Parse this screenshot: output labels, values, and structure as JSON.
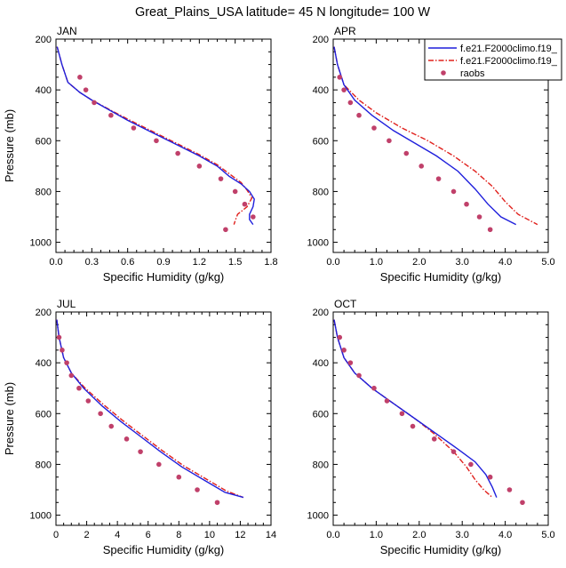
{
  "title": "Great_Plains_USA  latitude= 45 N longitude= 100 W",
  "colors": {
    "model1": "#1f1fdc",
    "model2": "#e0201c",
    "raobs": "#c0406a"
  },
  "legend": {
    "entries": [
      {
        "label": "f.e21.F2000climo.f19_",
        "style": "solid",
        "color": "#1f1fdc"
      },
      {
        "label": "f.e21.F2000climo.f19_",
        "style": "dashed",
        "color": "#e0201c"
      },
      {
        "label": "raobs",
        "style": "marker",
        "color": "#c0406a"
      }
    ]
  },
  "chart_data": [
    {
      "type": "line",
      "panel_label": "JAN",
      "xlabel": "Specific Humidity (g/kg)",
      "ylabel": "Pressure (mb)",
      "xlim": [
        0,
        1.8
      ],
      "ylim": [
        200,
        1040
      ],
      "y_reversed": true,
      "xticks": [
        "0.0",
        "0.3",
        "0.6",
        "0.9",
        "1.2",
        "1.5",
        "1.8"
      ],
      "yticks": [
        "200",
        "400",
        "600",
        "800",
        "1000"
      ],
      "series": [
        {
          "kind": "solid",
          "points": [
            [
              0.01,
              230
            ],
            [
              0.05,
              300
            ],
            [
              0.1,
              370
            ],
            [
              0.2,
              410
            ],
            [
              0.3,
              440
            ],
            [
              0.45,
              480
            ],
            [
              0.6,
              520
            ],
            [
              0.75,
              555
            ],
            [
              0.9,
              590
            ],
            [
              1.05,
              625
            ],
            [
              1.2,
              660
            ],
            [
              1.35,
              700
            ],
            [
              1.45,
              740
            ],
            [
              1.55,
              770
            ],
            [
              1.62,
              800
            ],
            [
              1.66,
              830
            ],
            [
              1.65,
              860
            ],
            [
              1.62,
              890
            ],
            [
              1.62,
              910
            ],
            [
              1.65,
              930
            ]
          ]
        },
        {
          "kind": "dashed",
          "points": [
            [
              0.01,
              230
            ],
            [
              0.05,
              300
            ],
            [
              0.1,
              370
            ],
            [
              0.2,
              410
            ],
            [
              0.3,
              440
            ],
            [
              0.45,
              478
            ],
            [
              0.6,
              515
            ],
            [
              0.75,
              550
            ],
            [
              0.9,
              585
            ],
            [
              1.05,
              620
            ],
            [
              1.2,
              655
            ],
            [
              1.35,
              695
            ],
            [
              1.45,
              730
            ],
            [
              1.55,
              765
            ],
            [
              1.6,
              795
            ],
            [
              1.64,
              825
            ],
            [
              1.6,
              860
            ],
            [
              1.52,
              890
            ],
            [
              1.5,
              915
            ],
            [
              1.49,
              930
            ]
          ]
        },
        {
          "kind": "marker",
          "points": [
            [
              0.2,
              350
            ],
            [
              0.25,
              400
            ],
            [
              0.32,
              450
            ],
            [
              0.46,
              500
            ],
            [
              0.65,
              550
            ],
            [
              0.84,
              600
            ],
            [
              1.02,
              650
            ],
            [
              1.2,
              700
            ],
            [
              1.38,
              750
            ],
            [
              1.5,
              800
            ],
            [
              1.58,
              850
            ],
            [
              1.65,
              900
            ],
            [
              1.42,
              950
            ]
          ]
        }
      ]
    },
    {
      "type": "line",
      "panel_label": "APR",
      "xlabel": "Specific Humidity (g/kg)",
      "ylabel": "",
      "xlim": [
        0,
        5.0
      ],
      "ylim": [
        200,
        1040
      ],
      "y_reversed": true,
      "xticks": [
        "0.0",
        "1.0",
        "2.0",
        "3.0",
        "4.0",
        "5.0"
      ],
      "yticks": [
        "200",
        "400",
        "600",
        "800",
        "1000"
      ],
      "series": [
        {
          "kind": "solid",
          "points": [
            [
              0.02,
              230
            ],
            [
              0.1,
              300
            ],
            [
              0.25,
              380
            ],
            [
              0.5,
              440
            ],
            [
              0.9,
              500
            ],
            [
              1.4,
              560
            ],
            [
              1.9,
              610
            ],
            [
              2.4,
              660
            ],
            [
              2.9,
              720
            ],
            [
              3.3,
              790
            ],
            [
              3.6,
              850
            ],
            [
              3.9,
              900
            ],
            [
              4.25,
              930
            ]
          ]
        },
        {
          "kind": "dashed",
          "points": [
            [
              0.02,
              230
            ],
            [
              0.1,
              300
            ],
            [
              0.25,
              380
            ],
            [
              0.6,
              440
            ],
            [
              1.0,
              490
            ],
            [
              1.6,
              550
            ],
            [
              2.2,
              600
            ],
            [
              2.8,
              660
            ],
            [
              3.3,
              720
            ],
            [
              3.7,
              780
            ],
            [
              4.0,
              840
            ],
            [
              4.3,
              890
            ],
            [
              4.75,
              930
            ]
          ]
        },
        {
          "kind": "marker",
          "points": [
            [
              0.15,
              350
            ],
            [
              0.25,
              400
            ],
            [
              0.4,
              450
            ],
            [
              0.6,
              500
            ],
            [
              0.95,
              550
            ],
            [
              1.3,
              600
            ],
            [
              1.7,
              650
            ],
            [
              2.05,
              700
            ],
            [
              2.45,
              750
            ],
            [
              2.8,
              800
            ],
            [
              3.1,
              850
            ],
            [
              3.4,
              900
            ],
            [
              3.65,
              950
            ]
          ]
        }
      ]
    },
    {
      "type": "line",
      "panel_label": "JUL",
      "xlabel": "Specific Humidity (g/kg)",
      "ylabel": "Pressure (mb)",
      "xlim": [
        0,
        14
      ],
      "ylim": [
        200,
        1040
      ],
      "y_reversed": true,
      "xticks": [
        "0",
        "2",
        "4",
        "6",
        "8",
        "10",
        "12",
        "14"
      ],
      "yticks": [
        "200",
        "400",
        "600",
        "800",
        "1000"
      ],
      "series": [
        {
          "kind": "solid",
          "points": [
            [
              0.05,
              230
            ],
            [
              0.2,
              300
            ],
            [
              0.5,
              380
            ],
            [
              1.0,
              440
            ],
            [
              1.8,
              500
            ],
            [
              3.0,
              570
            ],
            [
              4.2,
              630
            ],
            [
              5.5,
              690
            ],
            [
              6.8,
              750
            ],
            [
              8.2,
              810
            ],
            [
              9.6,
              860
            ],
            [
              11.0,
              910
            ],
            [
              12.2,
              930
            ]
          ]
        },
        {
          "kind": "dashed",
          "points": [
            [
              0.05,
              230
            ],
            [
              0.2,
              300
            ],
            [
              0.5,
              380
            ],
            [
              1.0,
              440
            ],
            [
              1.9,
              500
            ],
            [
              3.1,
              565
            ],
            [
              4.3,
              625
            ],
            [
              5.6,
              685
            ],
            [
              6.9,
              745
            ],
            [
              8.3,
              805
            ],
            [
              9.7,
              855
            ],
            [
              11.1,
              905
            ],
            [
              12.2,
              930
            ]
          ]
        },
        {
          "kind": "marker",
          "points": [
            [
              0.2,
              300
            ],
            [
              0.4,
              350
            ],
            [
              0.7,
              400
            ],
            [
              1.0,
              450
            ],
            [
              1.5,
              500
            ],
            [
              2.1,
              550
            ],
            [
              2.9,
              600
            ],
            [
              3.6,
              650
            ],
            [
              4.6,
              700
            ],
            [
              5.5,
              750
            ],
            [
              6.7,
              800
            ],
            [
              8.0,
              850
            ],
            [
              9.2,
              900
            ],
            [
              10.5,
              950
            ]
          ]
        }
      ]
    },
    {
      "type": "line",
      "panel_label": "OCT",
      "xlabel": "Specific Humidity (g/kg)",
      "ylabel": "",
      "xlim": [
        0,
        5.0
      ],
      "ylim": [
        200,
        1040
      ],
      "y_reversed": true,
      "xticks": [
        "0.0",
        "1.0",
        "2.0",
        "3.0",
        "4.0",
        "5.0"
      ],
      "yticks": [
        "200",
        "400",
        "600",
        "800",
        "1000"
      ],
      "series": [
        {
          "kind": "solid",
          "points": [
            [
              0.02,
              230
            ],
            [
              0.1,
              300
            ],
            [
              0.25,
              380
            ],
            [
              0.5,
              440
            ],
            [
              0.9,
              500
            ],
            [
              1.4,
              560
            ],
            [
              1.9,
              620
            ],
            [
              2.4,
              680
            ],
            [
              2.9,
              740
            ],
            [
              3.3,
              790
            ],
            [
              3.55,
              840
            ],
            [
              3.7,
              890
            ],
            [
              3.8,
              930
            ]
          ]
        },
        {
          "kind": "dashed",
          "points": [
            [
              0.02,
              230
            ],
            [
              0.1,
              300
            ],
            [
              0.25,
              380
            ],
            [
              0.5,
              440
            ],
            [
              0.9,
              500
            ],
            [
              1.4,
              560
            ],
            [
              1.9,
              620
            ],
            [
              2.35,
              680
            ],
            [
              2.8,
              750
            ],
            [
              3.1,
              810
            ],
            [
              3.3,
              860
            ],
            [
              3.5,
              900
            ],
            [
              3.7,
              930
            ]
          ]
        },
        {
          "kind": "marker",
          "points": [
            [
              0.15,
              300
            ],
            [
              0.25,
              350
            ],
            [
              0.4,
              400
            ],
            [
              0.6,
              450
            ],
            [
              0.95,
              500
            ],
            [
              1.25,
              550
            ],
            [
              1.6,
              600
            ],
            [
              1.85,
              650
            ],
            [
              2.35,
              700
            ],
            [
              2.8,
              750
            ],
            [
              3.2,
              800
            ],
            [
              3.65,
              850
            ],
            [
              4.1,
              900
            ],
            [
              4.4,
              950
            ]
          ]
        }
      ]
    }
  ]
}
